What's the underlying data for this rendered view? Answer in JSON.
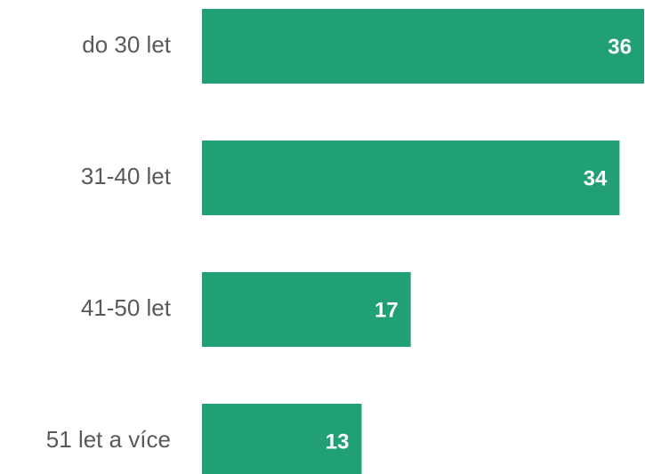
{
  "chart_data": {
    "type": "bar",
    "orientation": "horizontal",
    "categories": [
      "do 30 let",
      "31-40 let",
      "41-50 let",
      "51 let a více"
    ],
    "values": [
      36,
      34,
      17,
      13
    ],
    "color": "#21a075"
  }
}
